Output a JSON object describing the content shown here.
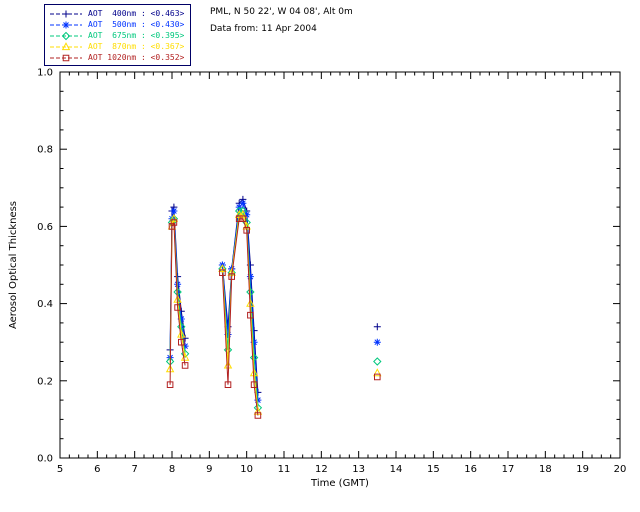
{
  "header": {
    "site_line": "PML, N 50 22', W 04 08', Alt 0m",
    "date_line": "Data from: 11 Apr 2004"
  },
  "legend_border_color": "#000066",
  "chart_data": {
    "type": "line",
    "title": "",
    "xlabel": "Time (GMT)",
    "ylabel": "Aerosol Optical Thickness",
    "xlim": [
      5,
      20
    ],
    "ylim": [
      0.0,
      1.0
    ],
    "x_major_ticks": [
      5,
      6,
      7,
      8,
      9,
      10,
      11,
      12,
      13,
      14,
      15,
      16,
      17,
      18,
      19,
      20
    ],
    "y_major_ticks": [
      0.0,
      0.2,
      0.4,
      0.6,
      0.8,
      1.0
    ],
    "x_minor_step": 0.25,
    "y_minor_step": 0.05,
    "grid": false,
    "legend_position": "top-left",
    "x": [
      7.95,
      8.0,
      8.05,
      8.15,
      8.25,
      8.35,
      9.35,
      9.5,
      9.6,
      9.8,
      9.9,
      10.0,
      10.1,
      10.2,
      10.3,
      13.5
    ],
    "series": [
      {
        "name": "AOT 400nm",
        "legend_label": "AOT  400nm : <0.463>",
        "mean_aot": 0.463,
        "marker": "plus",
        "color": "#00008B",
        "values": [
          0.28,
          0.64,
          0.65,
          0.47,
          0.38,
          0.31,
          0.5,
          0.34,
          0.49,
          0.66,
          0.67,
          0.64,
          0.5,
          0.33,
          0.17,
          0.34
        ]
      },
      {
        "name": "AOT 500nm",
        "legend_label": "AOT  500nm : <0.430>",
        "mean_aot": 0.43,
        "marker": "asterisk",
        "color": "#0033FF",
        "values": [
          0.26,
          0.62,
          0.64,
          0.45,
          0.36,
          0.29,
          0.5,
          0.32,
          0.49,
          0.65,
          0.66,
          0.63,
          0.47,
          0.3,
          0.15,
          0.3
        ]
      },
      {
        "name": "AOT 675nm",
        "legend_label": "AOT  675nm : <0.395>",
        "mean_aot": 0.395,
        "marker": "diamond",
        "color": "#00C87D",
        "values": [
          0.25,
          0.61,
          0.62,
          0.43,
          0.34,
          0.27,
          0.49,
          0.28,
          0.48,
          0.64,
          0.64,
          0.61,
          0.43,
          0.26,
          0.13,
          0.25
        ]
      },
      {
        "name": "AOT 870nm",
        "legend_label": "AOT  870nm : <0.367>",
        "mean_aot": 0.367,
        "marker": "triangle",
        "color": "#FFDD00",
        "values": [
          0.23,
          0.6,
          0.62,
          0.41,
          0.32,
          0.26,
          0.49,
          0.24,
          0.48,
          0.63,
          0.63,
          0.6,
          0.4,
          0.22,
          0.12,
          0.22
        ]
      },
      {
        "name": "AOT 1020nm",
        "legend_label": "AOT 1020nm : <0.352>",
        "mean_aot": 0.352,
        "marker": "square",
        "color": "#B22222",
        "values": [
          0.19,
          0.6,
          0.61,
          0.39,
          0.3,
          0.24,
          0.48,
          0.19,
          0.47,
          0.62,
          0.62,
          0.59,
          0.37,
          0.19,
          0.11,
          0.21
        ]
      }
    ]
  }
}
